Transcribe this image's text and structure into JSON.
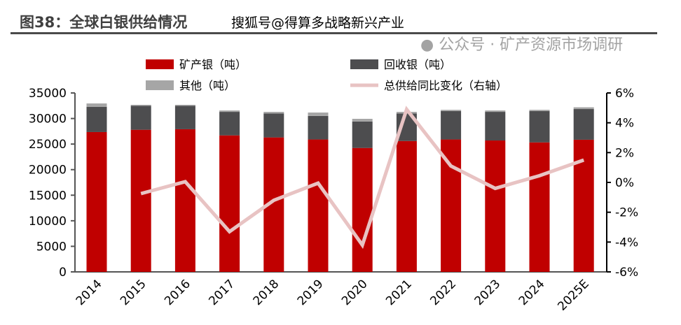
{
  "header": {
    "title": "图38：全球白银供给情况",
    "watermark_top": "搜狐号@得算多战略新兴产业",
    "watermark_bottom": "公众号 · 矿产资源市场调研"
  },
  "chart_data": {
    "type": "bar",
    "stacked": true,
    "title": "图38：全球白银供给情况",
    "categories": [
      "2014",
      "2015",
      "2016",
      "2017",
      "2018",
      "2019",
      "2020",
      "2021",
      "2022",
      "2023",
      "2024",
      "2025E"
    ],
    "series": [
      {
        "name": "矿产银（吨）",
        "type": "bar",
        "axis": "left",
        "color": "#c00000",
        "values": [
          27350,
          27800,
          27900,
          26700,
          26300,
          25900,
          24240,
          25600,
          25900,
          25700,
          25330,
          25850
        ]
      },
      {
        "name": "回收银（吨）",
        "type": "bar",
        "axis": "left",
        "color": "#4d4d4f",
        "values": [
          4950,
          4700,
          4600,
          4600,
          4700,
          4600,
          5160,
          5400,
          5550,
          5600,
          6120,
          6000
        ]
      },
      {
        "name": "其他（吨）",
        "type": "bar",
        "axis": "left",
        "color": "#a6a6a6",
        "values": [
          650,
          180,
          180,
          280,
          300,
          670,
          540,
          300,
          250,
          280,
          250,
          350
        ]
      },
      {
        "name": "总供给同比变化（右轴）",
        "type": "line",
        "axis": "right",
        "color": "#e8c3c3",
        "values": [
          null,
          -0.75,
          0.05,
          -3.3,
          -1.2,
          -0.05,
          -4.2,
          4.9,
          1.1,
          -0.4,
          0.45,
          1.5
        ]
      }
    ],
    "left_axis": {
      "min": 0,
      "max": 35000,
      "ticks": [
        "0",
        "5000",
        "10000",
        "15000",
        "20000",
        "25000",
        "30000",
        "35000"
      ]
    },
    "right_axis": {
      "min": -6,
      "max": 6,
      "ticks": [
        "-6%",
        "-4%",
        "-2%",
        "0%",
        "2%",
        "4%",
        "6%"
      ]
    },
    "legend_placement": "top",
    "grid": false
  }
}
